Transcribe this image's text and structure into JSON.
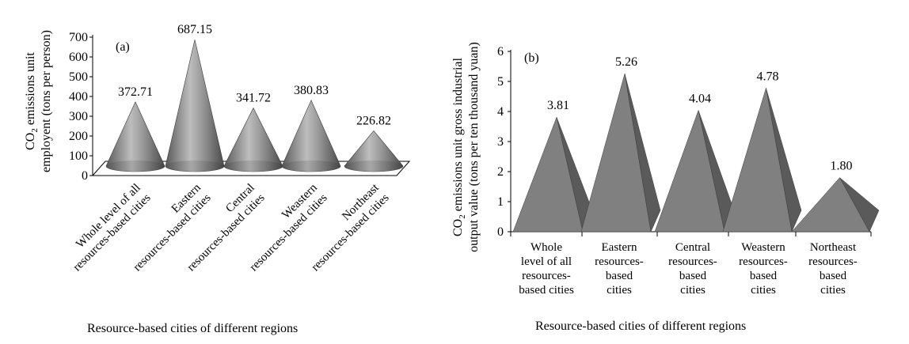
{
  "chart_data": [
    {
      "type": "bar",
      "panel_label": "(a)",
      "categories": [
        [
          "Whole level of all",
          "resources-based cities"
        ],
        [
          "Eastern",
          "resources-based cities"
        ],
        [
          "Central",
          "resources-based cities"
        ],
        [
          "Weastern",
          "resources-based cities"
        ],
        [
          "Northeast",
          "resources-based cities"
        ]
      ],
      "values": [
        372.71,
        687.15,
        341.72,
        380.83,
        226.82
      ],
      "value_labels": [
        "372.71",
        "687.15",
        "341.72",
        "380.83",
        "226.82"
      ],
      "xlabel": "Resource-based cities of different regions",
      "ylabel_lines": [
        "CO₂ emissions unit",
        "employent (tons per person)"
      ],
      "ylim": [
        0,
        700
      ],
      "yticks": [
        "0",
        "100",
        "200",
        "300",
        "400",
        "500",
        "600",
        "700"
      ],
      "bar_shape": "cone",
      "bar_color": "#8c8c8c"
    },
    {
      "type": "bar",
      "panel_label": "(b)",
      "categories": [
        [
          "Whole",
          "level of all",
          "resources-",
          "based cities"
        ],
        [
          "Eastern",
          "resources-",
          "based",
          "cities"
        ],
        [
          "Central",
          "resources-",
          "based",
          "cities"
        ],
        [
          "Weastern",
          "resources-",
          "based",
          "cities"
        ],
        [
          "Northeast",
          "resources-",
          "based",
          "cities"
        ]
      ],
      "values": [
        3.81,
        5.26,
        4.04,
        4.78,
        1.8
      ],
      "value_labels": [
        "3.81",
        "5.26",
        "4.04",
        "4.78",
        "1.80"
      ],
      "xlabel": "Resource-based cities of different regions",
      "ylabel_lines": [
        "CO₂ emissions unit gross industrial",
        "output value (tons per ten thousand yuan)"
      ],
      "ylim": [
        0,
        6
      ],
      "yticks": [
        "0",
        "1",
        "2",
        "3",
        "4",
        "5",
        "6"
      ],
      "bar_shape": "pyramid",
      "bar_color": "#808080",
      "bar_shadow_color": "#5a5a5a"
    }
  ]
}
